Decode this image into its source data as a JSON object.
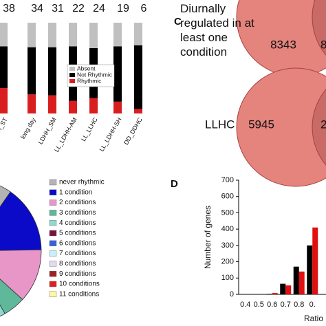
{
  "chart_data": [
    {
      "type": "bar",
      "stacked": true,
      "categories": [
        "HH_ST",
        "long day",
        "LDHH_SM",
        "LL_LDHH-AM",
        "LL_LLHC",
        "LL_LDHH-SH",
        "DD_DDHC"
      ],
      "top_labels": [
        38,
        34,
        31,
        22,
        24,
        19,
        6
      ],
      "series": [
        {
          "name": "Rhythmic",
          "color": "#d81e1e",
          "values": [
            28,
            21,
            20,
            14,
            17,
            13,
            5
          ]
        },
        {
          "name": "Not Rhythmic",
          "color": "#000000",
          "values": [
            46,
            52,
            53,
            60,
            55,
            61,
            70
          ]
        },
        {
          "name": "Absent",
          "color": "#c0c0c0",
          "values": [
            26,
            27,
            27,
            26,
            28,
            26,
            25
          ]
        }
      ],
      "ylim": [
        0,
        100
      ]
    },
    {
      "type": "pie",
      "categories": [
        "never rhythmic",
        "1 condition",
        "2 conditions",
        "3 conditions",
        "4 conditions",
        "5 conditions",
        "6 conditions",
        "7 conditions",
        "8 conditions",
        "9 conditions",
        "10 conditions",
        "11 conditions"
      ],
      "values": [
        45,
        15,
        12,
        5,
        4,
        3,
        3,
        3,
        3,
        2,
        3,
        2
      ],
      "colors": [
        "#b4b4b4",
        "#0a0ac8",
        "#e896c8",
        "#5fb89a",
        "#92d8d0",
        "#7a1040",
        "#3462e0",
        "#c8f0f8",
        "#e2daf2",
        "#a02020",
        "#e02020",
        "#fff8a0"
      ]
    },
    {
      "type": "bar",
      "panel": "D",
      "ylabel": "Number of genes",
      "xlabel": "Ratio (diu",
      "categories": [
        "0.4",
        "0.5",
        "0.6",
        "0.7",
        "0.8",
        "0."
      ],
      "series": [
        {
          "color": "#000000",
          "values": [
            0,
            0,
            3,
            65,
            170,
            300
          ]
        },
        {
          "color": "#e01010",
          "values": [
            0,
            0,
            8,
            55,
            140,
            410
          ]
        }
      ],
      "ylim": [
        0,
        700
      ],
      "yticks": [
        0,
        100,
        200,
        300,
        400,
        500,
        600,
        700
      ]
    }
  ],
  "venn": {
    "panel": "C",
    "diagrams": [
      {
        "label": "Diurnally regulated in at least one condition",
        "left": "8343",
        "right": "8"
      },
      {
        "label": "LLHC",
        "left": "5945",
        "right": "2"
      }
    ]
  }
}
